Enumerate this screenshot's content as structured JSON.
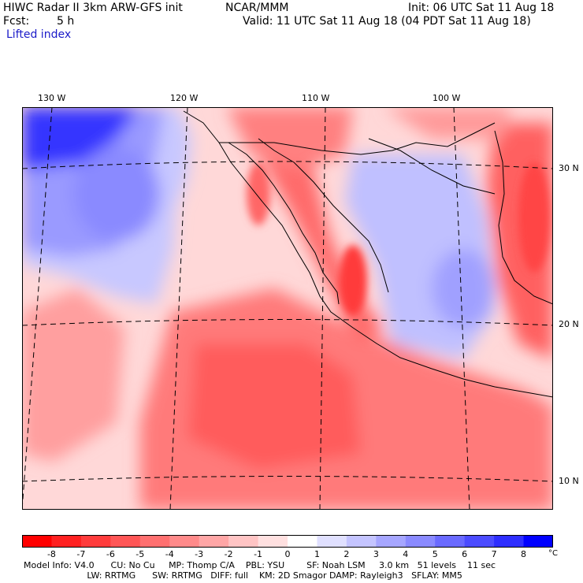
{
  "header": {
    "model_title": "HIWC Radar II 3km ARW-GFS init",
    "org": "NCAR/MMM",
    "init": "Init: 06 UTC Sat 11 Aug 18",
    "fcst_label": "Fcst:",
    "fcst_value": "5 h",
    "valid": "Valid: 11 UTC Sat 11 Aug 18 (04 PDT Sat 11 Aug 18)",
    "field": "Lifted index"
  },
  "map": {
    "lon_labels": [
      "130 W",
      "120 W",
      "110 W",
      "100 W"
    ],
    "lat_labels": [
      "30 N",
      "20 N",
      "10 N"
    ],
    "colors": {
      "negative_max": "#ff0000",
      "neutral": "#ffffff",
      "positive_max": "#0000ff"
    }
  },
  "colorbar": {
    "ticks": [
      "-8",
      "-7",
      "-6",
      "-5",
      "-4",
      "-3",
      "-2",
      "-1",
      "0",
      "1",
      "2",
      "3",
      "4",
      "5",
      "6",
      "7",
      "8"
    ],
    "unit": "°C",
    "colors": [
      "#ff0000",
      "#ff2121",
      "#ff3c3c",
      "#ff5656",
      "#ff7070",
      "#ff8a8a",
      "#ffa6a6",
      "#ffc4c4",
      "#ffe0e0",
      "#ffffff",
      "#e0e0ff",
      "#c4c4ff",
      "#a6a6ff",
      "#8a8aff",
      "#6a6aff",
      "#4c4cff",
      "#2e2eff",
      "#0000ff"
    ]
  },
  "footer": {
    "line1": "Model Info: V4.0      CU: No Cu     MP: Thomp C/A    PBL: YSU        SF: Noah LSM     3.0 km   51 levels    11 sec",
    "line2": "                       LW: RRTMG      SW: RRTMG   DIFF: full    KM: 2D Smagor DAMP: Rayleigh3   SFLAY: MM5"
  }
}
